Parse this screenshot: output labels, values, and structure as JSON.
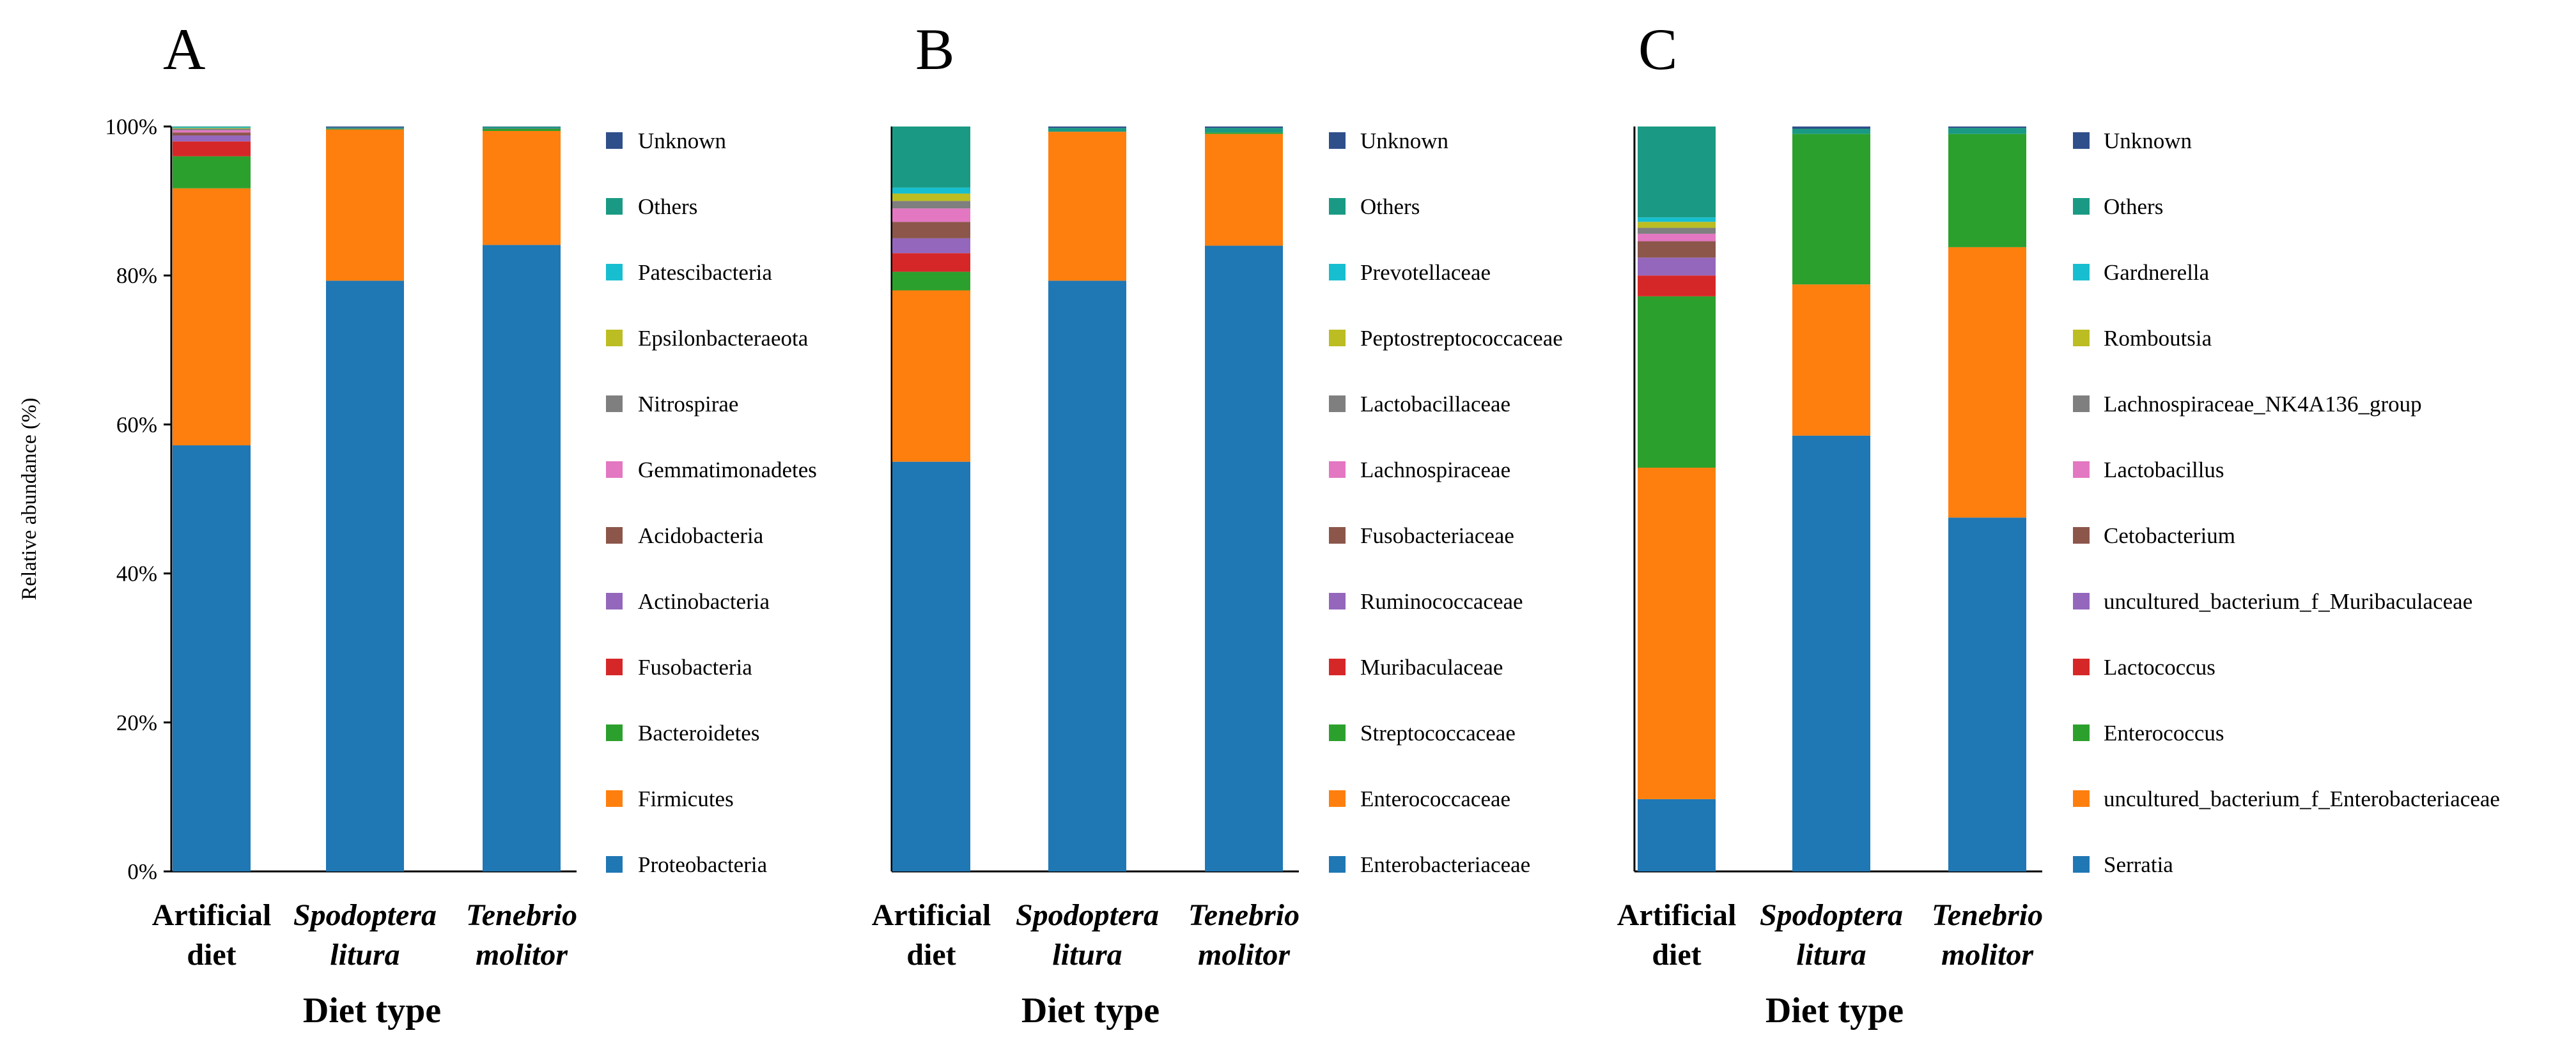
{
  "chart_data": [
    {
      "type": "stacked-bar",
      "panel_label": "A",
      "title": "",
      "xlabel": "Diet type",
      "ylabel": "Relative abundance (%)",
      "ylim": [
        0,
        100
      ],
      "yticks": [
        "0%",
        "20%",
        "40%",
        "60%",
        "80%",
        "100%"
      ],
      "categories": [
        {
          "line1": "Artificial",
          "line2": "diet",
          "italic": false
        },
        {
          "line1": "Spodoptera",
          "line2": "litura",
          "italic": true
        },
        {
          "line1": "Tenebrio",
          "line2": "molitor",
          "italic": true
        }
      ],
      "legend_order": "top-to-bottom",
      "series": [
        {
          "name": "Proteobacteria",
          "color": "#1f77b4",
          "values": [
            57.2,
            79.3,
            84.1
          ]
        },
        {
          "name": "Firmicutes",
          "color": "#ff7f0e",
          "values": [
            34.5,
            20.3,
            15.3
          ]
        },
        {
          "name": "Bacteroidetes",
          "color": "#2ca02c",
          "values": [
            4.3,
            0.1,
            0.3
          ]
        },
        {
          "name": "Fusobacteria",
          "color": "#d62728",
          "values": [
            2.0,
            0.0,
            0.0
          ]
        },
        {
          "name": "Actinobacteria",
          "color": "#9467bd",
          "values": [
            0.8,
            0.05,
            0.05
          ]
        },
        {
          "name": "Acidobacteria",
          "color": "#8c564b",
          "values": [
            0.4,
            0.0,
            0.0
          ]
        },
        {
          "name": "Gemmatimonadetes",
          "color": "#e377c2",
          "values": [
            0.3,
            0.0,
            0.0
          ]
        },
        {
          "name": "Nitrospirae",
          "color": "#7f7f7f",
          "values": [
            0.2,
            0.0,
            0.0
          ]
        },
        {
          "name": "Epsilonbacteraeota",
          "color": "#bcbd22",
          "values": [
            0.1,
            0.0,
            0.0
          ]
        },
        {
          "name": "Patescibacteria",
          "color": "#17becf",
          "values": [
            0.1,
            0.0,
            0.0
          ]
        },
        {
          "name": "Others",
          "color": "#1a9a84",
          "values": [
            0.1,
            0.1,
            0.2
          ]
        },
        {
          "name": "Unknown",
          "color": "#2f4f8a",
          "values": [
            0.0,
            0.15,
            0.05
          ]
        }
      ]
    },
    {
      "type": "stacked-bar",
      "panel_label": "B",
      "title": "",
      "xlabel": "Diet type",
      "ylabel": "",
      "ylim": [
        0,
        100
      ],
      "yticks": [],
      "categories": [
        {
          "line1": "Artificial",
          "line2": "diet",
          "italic": false
        },
        {
          "line1": "Spodoptera",
          "line2": "litura",
          "italic": true
        },
        {
          "line1": "Tenebrio",
          "line2": "molitor",
          "italic": true
        }
      ],
      "legend_order": "top-to-bottom",
      "series": [
        {
          "name": "Enterobacteriaceae",
          "color": "#1f77b4",
          "values": [
            55.0,
            79.3,
            84.0
          ]
        },
        {
          "name": "Enterococcaceae",
          "color": "#ff7f0e",
          "values": [
            23.0,
            20.0,
            15.0
          ]
        },
        {
          "name": "Streptococcaceae",
          "color": "#2ca02c",
          "values": [
            2.5,
            0.0,
            0.2
          ]
        },
        {
          "name": "Muribaculaceae",
          "color": "#d62728",
          "values": [
            2.5,
            0.0,
            0.0
          ]
        },
        {
          "name": "Ruminococcaceae",
          "color": "#9467bd",
          "values": [
            2.0,
            0.0,
            0.0
          ]
        },
        {
          "name": "Fusobacteriaceae",
          "color": "#8c564b",
          "values": [
            2.2,
            0.0,
            0.0
          ]
        },
        {
          "name": "Lachnospiraceae",
          "color": "#e377c2",
          "values": [
            1.8,
            0.0,
            0.0
          ]
        },
        {
          "name": "Lactobacillaceae",
          "color": "#7f7f7f",
          "values": [
            1.0,
            0.0,
            0.0
          ]
        },
        {
          "name": "Peptostreptococcaceae",
          "color": "#bcbd22",
          "values": [
            1.0,
            0.0,
            0.0
          ]
        },
        {
          "name": "Prevotellaceae",
          "color": "#17becf",
          "values": [
            0.8,
            0.0,
            0.0
          ]
        },
        {
          "name": "Others",
          "color": "#1a9a84",
          "values": [
            8.2,
            0.5,
            0.6
          ]
        },
        {
          "name": "Unknown",
          "color": "#2f4f8a",
          "values": [
            0.0,
            0.2,
            0.2
          ]
        }
      ]
    },
    {
      "type": "stacked-bar",
      "panel_label": "C",
      "title": "",
      "xlabel": "Diet type",
      "ylabel": "",
      "ylim": [
        0,
        100
      ],
      "yticks": [],
      "categories": [
        {
          "line1": "Artificial",
          "line2": "diet",
          "italic": false
        },
        {
          "line1": "Spodoptera",
          "line2": "litura",
          "italic": true
        },
        {
          "line1": "Tenebrio",
          "line2": "molitor",
          "italic": true
        }
      ],
      "legend_order": "top-to-bottom",
      "series": [
        {
          "name": "Serratia",
          "color": "#1f77b4",
          "values": [
            9.7,
            58.5,
            47.5
          ]
        },
        {
          "name": "uncultured_bacterium_f_Enterobacteriaceae",
          "color": "#ff7f0e",
          "values": [
            44.5,
            20.3,
            36.3
          ]
        },
        {
          "name": "Enterococcus",
          "color": "#2ca02c",
          "values": [
            23.0,
            20.2,
            15.2
          ]
        },
        {
          "name": "Lactococcus",
          "color": "#d62728",
          "values": [
            2.8,
            0.0,
            0.0
          ]
        },
        {
          "name": "uncultured_bacterium_f_Muribaculaceae",
          "color": "#9467bd",
          "values": [
            2.4,
            0.0,
            0.0
          ]
        },
        {
          "name": "Cetobacterium",
          "color": "#8c564b",
          "values": [
            2.2,
            0.0,
            0.0
          ]
        },
        {
          "name": "Lactobacillus",
          "color": "#e377c2",
          "values": [
            1.0,
            0.0,
            0.0
          ]
        },
        {
          "name": "Lachnospiraceae_NK4A136_group",
          "color": "#7f7f7f",
          "values": [
            0.8,
            0.0,
            0.0
          ]
        },
        {
          "name": "Romboutsia",
          "color": "#bcbd22",
          "values": [
            0.8,
            0.0,
            0.0
          ]
        },
        {
          "name": "Gardnerella",
          "color": "#17becf",
          "values": [
            0.6,
            0.0,
            0.0
          ]
        },
        {
          "name": "Others",
          "color": "#1a9a84",
          "values": [
            12.2,
            0.7,
            0.8
          ]
        },
        {
          "name": "Unknown",
          "color": "#2f4f8a",
          "values": [
            0.0,
            0.3,
            0.2
          ]
        }
      ]
    }
  ]
}
